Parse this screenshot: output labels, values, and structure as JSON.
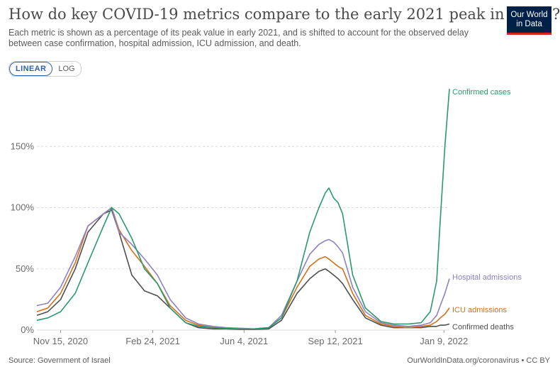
{
  "title": "How do key COVID-19 metrics compare to the early 2021 peak in Israel?",
  "subtitle": "Each metric is shown as a percentage of its peak value in early 2021, and is shifted to account for the observed delay between case confirmation, hospital admission, ICU admission, and death.",
  "logo": {
    "line1": "Our World",
    "line2": "in Data"
  },
  "toggle": {
    "linear": "LINEAR",
    "log": "LOG",
    "selected": "LINEAR"
  },
  "footer": {
    "source": "Source: Government of Israel",
    "credit": "OurWorldInData.org/coronavirus • CC BY"
  },
  "colors": {
    "cases": "#2a9a6d",
    "hospital": "#8f80c2",
    "icu": "#d2711b",
    "deaths": "#4f4f4f",
    "grid": "#dddddd",
    "axis_text": "#6b6b6b"
  },
  "chart_data": {
    "type": "line",
    "ylim": [
      0,
      200
    ],
    "yticks": [
      "0%",
      "50%",
      "100%",
      "150%"
    ],
    "xticks": [
      "Nov 15, 2020",
      "Feb 24, 2021",
      "Jun 4, 2021",
      "Sep 12, 2021",
      "Jan 9, 2022"
    ],
    "x": [
      "2020-10-20",
      "2020-11-01",
      "2020-11-15",
      "2020-12-01",
      "2020-12-15",
      "2021-01-01",
      "2021-01-10",
      "2021-01-18",
      "2021-02-01",
      "2021-02-15",
      "2021-03-01",
      "2021-03-15",
      "2021-04-01",
      "2021-04-15",
      "2021-05-01",
      "2021-05-15",
      "2021-06-01",
      "2021-06-15",
      "2021-07-01",
      "2021-07-15",
      "2021-08-01",
      "2021-08-15",
      "2021-08-25",
      "2021-09-01",
      "2021-09-05",
      "2021-09-10",
      "2021-09-15",
      "2021-09-20",
      "2021-10-01",
      "2021-10-15",
      "2021-11-01",
      "2021-11-15",
      "2021-12-01",
      "2021-12-15",
      "2021-12-25",
      "2022-01-01",
      "2022-01-05",
      "2022-01-10",
      "2022-01-15"
    ],
    "series": [
      {
        "name": "Confirmed cases",
        "values": [
          8,
          10,
          15,
          30,
          55,
          85,
          100,
          95,
          75,
          50,
          38,
          18,
          6,
          3,
          2,
          1.5,
          1,
          1,
          2,
          10,
          40,
          80,
          100,
          112,
          116,
          108,
          104,
          95,
          45,
          18,
          7,
          5,
          5,
          6,
          15,
          40,
          90,
          150,
          197
        ]
      },
      {
        "name": "Hospital admissions",
        "values": [
          20,
          22,
          35,
          60,
          85,
          95,
          100,
          80,
          70,
          58,
          45,
          25,
          10,
          5,
          3,
          2,
          1.5,
          1,
          2,
          12,
          40,
          62,
          70,
          73,
          74,
          72,
          68,
          63,
          35,
          15,
          6,
          4,
          3,
          4,
          6,
          12,
          20,
          30,
          42
        ]
      },
      {
        "name": "ICU admissions",
        "values": [
          15,
          18,
          30,
          55,
          85,
          95,
          100,
          82,
          65,
          52,
          38,
          20,
          8,
          4,
          2,
          1.5,
          1,
          1,
          2,
          10,
          35,
          52,
          58,
          60,
          58,
          55,
          52,
          50,
          30,
          12,
          5,
          3,
          2,
          3,
          4,
          7,
          10,
          13,
          18
        ]
      },
      {
        "name": "Confirmed deaths",
        "values": [
          12,
          15,
          25,
          50,
          80,
          95,
          98,
          80,
          45,
          32,
          28,
          18,
          6,
          2,
          1,
          1,
          0.5,
          0.5,
          1,
          8,
          30,
          42,
          48,
          50,
          48,
          45,
          42,
          38,
          25,
          10,
          4,
          2,
          2,
          2,
          3,
          3,
          4,
          4,
          5
        ]
      }
    ],
    "endlabels": [
      "Confirmed cases",
      "Hospital admissions",
      "ICU admissions",
      "Confirmed deaths"
    ]
  }
}
